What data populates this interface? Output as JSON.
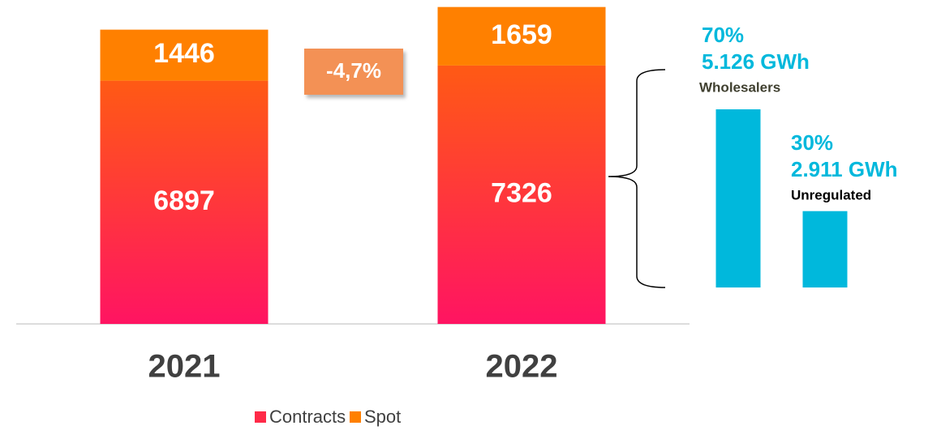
{
  "chart_data": [
    {
      "type": "stacked_bar",
      "categories": [
        "2021",
        "2022"
      ],
      "series": [
        {
          "name": "Contracts",
          "color": "#ff2a48",
          "values": [
            6897,
            7326
          ]
        },
        {
          "name": "Spot",
          "color": "#ff8000",
          "values": [
            1446,
            1659
          ]
        }
      ],
      "ylim": [
        0,
        9000
      ],
      "annotation": "-4,7%",
      "legend": "bottom"
    },
    {
      "type": "bar",
      "categories": [
        "Wholesalers",
        "Unregulated"
      ],
      "values": [
        70,
        30
      ],
      "value_labels": [
        "70%",
        "30%"
      ],
      "energy_labels": [
        "5.126 GWh",
        "2.911 GWh"
      ],
      "color": "#00b8dc",
      "ylim": [
        0,
        70
      ]
    }
  ]
}
